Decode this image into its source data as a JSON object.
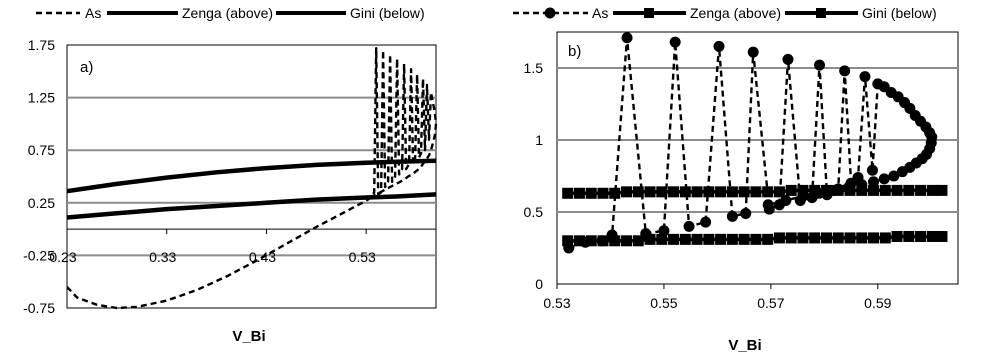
{
  "chart_data": [
    {
      "type": "line",
      "panel_label": "a)",
      "xlabel": "V_Bi",
      "ylabel": "",
      "xticks": [
        "0.23",
        "0.33",
        "0.43",
        "0.53"
      ],
      "yticks": [
        "1.75",
        "1.25",
        "0.75",
        "0.25",
        "-0.25",
        "-0.75"
      ],
      "xlim": [
        0.23,
        0.6
      ],
      "ylim": [
        -0.75,
        1.75
      ],
      "grid": "horizontal",
      "legend_position": "top",
      "series": [
        {
          "name": "As",
          "style": "dashed",
          "marker": "none",
          "x": [
            0.23,
            0.24,
            0.26,
            0.28,
            0.3,
            0.33,
            0.36,
            0.39,
            0.42,
            0.45,
            0.48,
            0.5,
            0.52,
            0.53,
            0.535,
            0.538,
            0.54,
            0.542,
            0.545,
            0.547,
            0.549,
            0.552,
            0.554,
            0.556,
            0.559,
            0.561,
            0.563,
            0.566,
            0.568,
            0.57,
            0.573,
            0.575,
            0.577,
            0.579,
            0.581,
            0.583,
            0.585,
            0.587,
            0.589,
            0.591,
            0.593,
            0.595,
            0.597,
            0.599,
            0.6,
            0.599,
            0.597,
            0.595,
            0.593,
            0.59,
            0.587,
            0.584,
            0.58,
            0.576,
            0.572,
            0.568,
            0.564,
            0.56,
            0.556,
            0.552,
            0.548,
            0.544,
            0.54,
            0.536
          ],
          "y": [
            -0.55,
            -0.65,
            -0.72,
            -0.75,
            -0.74,
            -0.68,
            -0.58,
            -0.45,
            -0.3,
            -0.14,
            0.02,
            0.12,
            0.22,
            0.27,
            0.3,
            0.35,
            1.72,
            0.33,
            0.35,
            1.7,
            0.4,
            0.45,
            1.66,
            0.45,
            0.5,
            1.62,
            0.52,
            0.57,
            1.57,
            0.57,
            0.62,
            1.52,
            0.62,
            0.66,
            1.47,
            0.68,
            0.72,
            1.43,
            0.75,
            1.37,
            0.85,
            1.3,
            1.2,
            1.1,
            1.0,
            0.9,
            0.82,
            0.75,
            0.7,
            0.66,
            0.62,
            0.58,
            0.55,
            0.52,
            0.5,
            0.47,
            0.45,
            0.43,
            0.41,
            0.39,
            0.37,
            0.35,
            0.33,
            0.31
          ]
        },
        {
          "name": "Zenga (above)",
          "style": "solid",
          "marker": "none",
          "x": [
            0.23,
            0.28,
            0.33,
            0.38,
            0.43,
            0.48,
            0.53,
            0.56,
            0.6
          ],
          "y": [
            0.36,
            0.43,
            0.49,
            0.54,
            0.58,
            0.61,
            0.63,
            0.64,
            0.65
          ]
        },
        {
          "name": "Gini (below)",
          "style": "solid",
          "marker": "none",
          "x": [
            0.23,
            0.28,
            0.33,
            0.38,
            0.43,
            0.48,
            0.53,
            0.56,
            0.6
          ],
          "y": [
            0.11,
            0.15,
            0.19,
            0.22,
            0.25,
            0.28,
            0.3,
            0.31,
            0.33
          ]
        }
      ]
    },
    {
      "type": "line",
      "panel_label": "b)",
      "xlabel": "V_Bi",
      "ylabel": "",
      "xticks": [
        "0.53",
        "0.55",
        "0.57",
        "0.59"
      ],
      "yticks": [
        "0",
        "0.5",
        "1",
        "1.5"
      ],
      "xlim": [
        0.53,
        0.605
      ],
      "ylim": [
        0,
        1.75
      ],
      "grid": "horizontal",
      "legend_position": "top",
      "series": [
        {
          "name": "As",
          "style": "dashed",
          "marker": "circle",
          "x": [
            0.5322,
            0.5353,
            0.5384,
            0.5403,
            0.5431,
            0.5466,
            0.55,
            0.5521,
            0.5547,
            0.5578,
            0.5603,
            0.5628,
            0.5653,
            0.5667,
            0.5697,
            0.5716,
            0.5732,
            0.5755,
            0.5777,
            0.5791,
            0.5805,
            0.5826,
            0.5838,
            0.585,
            0.5863,
            0.5876,
            0.589,
            0.59,
            0.5912,
            0.5925,
            0.5938,
            0.595,
            0.596,
            0.597,
            0.598,
            0.599,
            0.5997,
            0.6001,
            0.6,
            0.5997,
            0.5991,
            0.5983,
            0.5972,
            0.596,
            0.5946,
            0.593,
            0.5912,
            0.5892,
            0.587,
            0.5845,
            0.5818,
            0.579,
            0.576,
            0.5728,
            0.5695
          ],
          "y": [
            0.25,
            0.29,
            0.3,
            0.34,
            1.71,
            0.35,
            0.37,
            1.68,
            0.4,
            0.43,
            1.65,
            0.47,
            0.49,
            1.61,
            0.52,
            0.55,
            1.56,
            0.58,
            0.6,
            1.52,
            0.62,
            0.66,
            1.48,
            0.7,
            0.74,
            1.44,
            0.79,
            1.39,
            1.37,
            1.33,
            1.3,
            1.26,
            1.22,
            1.17,
            1.13,
            1.09,
            1.05,
            1.02,
            0.98,
            0.94,
            0.9,
            0.87,
            0.84,
            0.81,
            0.78,
            0.75,
            0.73,
            0.71,
            0.69,
            0.67,
            0.65,
            0.63,
            0.61,
            0.58,
            0.55
          ]
        },
        {
          "name": "Zenga (above)",
          "style": "solid",
          "marker": "square",
          "x": [
            0.532,
            0.5342,
            0.5364,
            0.5386,
            0.5408,
            0.543,
            0.5452,
            0.5474,
            0.5496,
            0.5518,
            0.554,
            0.5562,
            0.5584,
            0.5606,
            0.5628,
            0.565,
            0.5672,
            0.5694,
            0.5716,
            0.5738,
            0.576,
            0.5782,
            0.5804,
            0.5826,
            0.5848,
            0.587,
            0.5892,
            0.5914,
            0.5936,
            0.5958,
            0.598,
            0.6002,
            0.602
          ],
          "y": [
            0.63,
            0.63,
            0.63,
            0.63,
            0.63,
            0.64,
            0.64,
            0.64,
            0.64,
            0.64,
            0.64,
            0.64,
            0.64,
            0.64,
            0.64,
            0.64,
            0.64,
            0.64,
            0.64,
            0.65,
            0.65,
            0.65,
            0.65,
            0.65,
            0.65,
            0.65,
            0.65,
            0.65,
            0.65,
            0.65,
            0.65,
            0.65,
            0.65
          ]
        },
        {
          "name": "Gini (below)",
          "style": "solid",
          "marker": "square",
          "x": [
            0.532,
            0.5342,
            0.5364,
            0.5386,
            0.5408,
            0.543,
            0.5452,
            0.5474,
            0.5496,
            0.5518,
            0.554,
            0.5562,
            0.5584,
            0.5606,
            0.5628,
            0.565,
            0.5672,
            0.5694,
            0.5716,
            0.5738,
            0.576,
            0.5782,
            0.5804,
            0.5826,
            0.5848,
            0.587,
            0.5892,
            0.5914,
            0.5936,
            0.5958,
            0.598,
            0.6002,
            0.602
          ],
          "y": [
            0.3,
            0.3,
            0.3,
            0.3,
            0.3,
            0.3,
            0.3,
            0.31,
            0.31,
            0.31,
            0.31,
            0.31,
            0.31,
            0.31,
            0.31,
            0.31,
            0.31,
            0.31,
            0.32,
            0.32,
            0.32,
            0.32,
            0.32,
            0.32,
            0.32,
            0.32,
            0.32,
            0.32,
            0.33,
            0.33,
            0.33,
            0.33,
            0.33
          ]
        }
      ]
    }
  ]
}
